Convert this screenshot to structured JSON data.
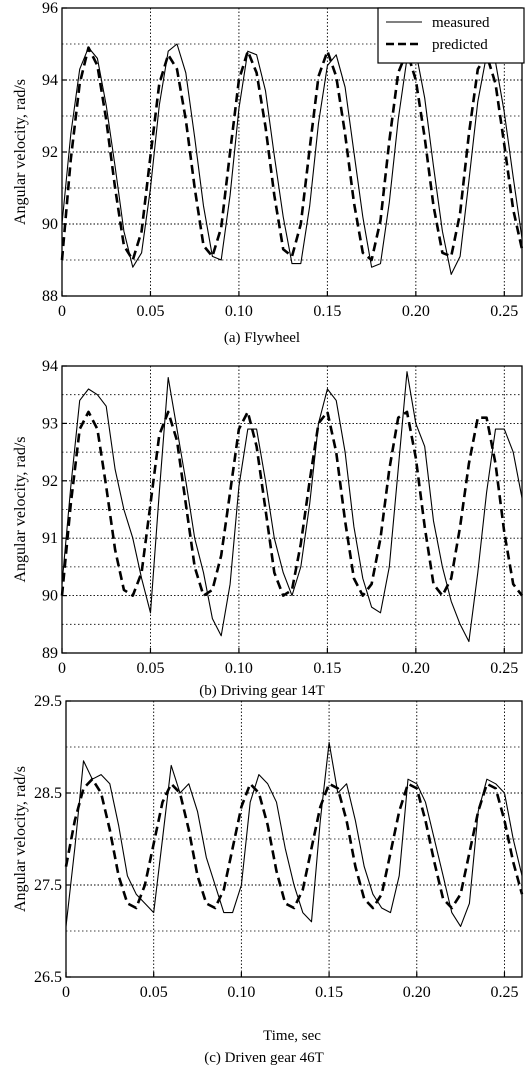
{
  "chart_data": [
    {
      "type": "line",
      "caption": "(a) Flywheel",
      "xlabel": "",
      "ylabel": "Angular velocity, rad/s",
      "xlim": [
        0,
        0.26
      ],
      "ylim": [
        88,
        96
      ],
      "xticks": [
        0,
        0.05,
        0.1,
        0.15,
        0.2,
        0.25
      ],
      "xtick_labels": [
        "0",
        "0.05",
        "0.10",
        "0.15",
        "0.20",
        "0.25"
      ],
      "yticks": [
        88,
        90,
        92,
        94,
        96
      ],
      "ytick_labels": [
        "88",
        "90",
        "92",
        "94",
        "96"
      ],
      "grid": true,
      "legend": {
        "placement": "top-right",
        "entries": [
          "measured",
          "predicted"
        ]
      },
      "series": [
        {
          "name": "measured",
          "style": "solid",
          "x": [
            0.0,
            0.005,
            0.01,
            0.015,
            0.02,
            0.025,
            0.03,
            0.035,
            0.04,
            0.045,
            0.05,
            0.055,
            0.06,
            0.065,
            0.07,
            0.075,
            0.08,
            0.085,
            0.09,
            0.095,
            0.1,
            0.105,
            0.11,
            0.115,
            0.12,
            0.125,
            0.13,
            0.135,
            0.14,
            0.145,
            0.15,
            0.155,
            0.16,
            0.165,
            0.17,
            0.175,
            0.18,
            0.185,
            0.19,
            0.195,
            0.2,
            0.205,
            0.21,
            0.215,
            0.22,
            0.225,
            0.23,
            0.235,
            0.24,
            0.245,
            0.25,
            0.255,
            0.26
          ],
          "y": [
            90.0,
            92.5,
            94.3,
            94.9,
            94.6,
            93.3,
            91.6,
            89.8,
            88.8,
            89.2,
            91.0,
            93.3,
            94.8,
            95.0,
            94.2,
            92.4,
            90.5,
            89.1,
            89.0,
            90.8,
            93.2,
            94.8,
            94.7,
            93.7,
            91.9,
            90.2,
            88.9,
            88.9,
            90.5,
            92.8,
            94.4,
            94.7,
            93.8,
            92.0,
            90.2,
            88.8,
            88.9,
            90.6,
            92.9,
            94.6,
            94.8,
            93.5,
            91.6,
            89.8,
            88.6,
            89.1,
            91.2,
            93.4,
            94.7,
            94.5,
            93.1,
            91.3,
            89.6
          ]
        },
        {
          "name": "predicted",
          "style": "dashed",
          "x": [
            0.0,
            0.005,
            0.01,
            0.015,
            0.02,
            0.025,
            0.03,
            0.035,
            0.04,
            0.045,
            0.05,
            0.055,
            0.06,
            0.065,
            0.07,
            0.075,
            0.08,
            0.085,
            0.09,
            0.095,
            0.1,
            0.105,
            0.11,
            0.115,
            0.12,
            0.125,
            0.13,
            0.135,
            0.14,
            0.145,
            0.15,
            0.155,
            0.16,
            0.165,
            0.17,
            0.175,
            0.18,
            0.185,
            0.19,
            0.195,
            0.2,
            0.205,
            0.21,
            0.215,
            0.22,
            0.225,
            0.23,
            0.235,
            0.24,
            0.245,
            0.25,
            0.255,
            0.26
          ],
          "y": [
            89.0,
            91.8,
            93.9,
            94.9,
            94.4,
            92.9,
            91.0,
            89.4,
            89.0,
            89.8,
            91.9,
            93.9,
            94.7,
            94.3,
            92.9,
            91.0,
            89.4,
            89.1,
            89.9,
            92.0,
            94.0,
            94.8,
            94.2,
            92.7,
            90.8,
            89.3,
            89.1,
            90.0,
            92.1,
            94.1,
            94.8,
            94.1,
            92.5,
            90.6,
            89.2,
            89.0,
            90.1,
            92.3,
            94.2,
            94.8,
            94.0,
            92.4,
            90.5,
            89.2,
            89.1,
            90.3,
            92.5,
            94.3,
            94.7,
            93.9,
            92.2,
            90.4,
            89.3
          ]
        }
      ]
    },
    {
      "type": "line",
      "caption": "(b) Driving gear 14T",
      "xlabel": "",
      "ylabel": "Angular velocity, rad/s",
      "xlim": [
        0,
        0.26
      ],
      "ylim": [
        89,
        94
      ],
      "xticks": [
        0,
        0.05,
        0.1,
        0.15,
        0.2,
        0.25
      ],
      "xtick_labels": [
        "0",
        "0.05",
        "0.10",
        "0.15",
        "0.20",
        "0.25"
      ],
      "yticks": [
        89,
        90,
        91,
        92,
        93,
        94
      ],
      "ytick_labels": [
        "89",
        "90",
        "91",
        "92",
        "93",
        "94"
      ],
      "grid": true,
      "series": [
        {
          "name": "measured",
          "style": "solid",
          "x": [
            0.0,
            0.005,
            0.01,
            0.015,
            0.02,
            0.025,
            0.03,
            0.035,
            0.04,
            0.045,
            0.05,
            0.055,
            0.06,
            0.065,
            0.07,
            0.075,
            0.08,
            0.085,
            0.09,
            0.095,
            0.1,
            0.105,
            0.11,
            0.115,
            0.12,
            0.125,
            0.13,
            0.135,
            0.14,
            0.145,
            0.15,
            0.155,
            0.16,
            0.165,
            0.17,
            0.175,
            0.18,
            0.185,
            0.19,
            0.195,
            0.2,
            0.205,
            0.21,
            0.215,
            0.22,
            0.225,
            0.23,
            0.235,
            0.24,
            0.245,
            0.25,
            0.255,
            0.26
          ],
          "y": [
            90.2,
            91.9,
            93.4,
            93.6,
            93.5,
            93.3,
            92.2,
            91.5,
            91.0,
            90.3,
            89.7,
            91.8,
            93.8,
            92.9,
            92.0,
            91.0,
            90.4,
            89.6,
            89.3,
            90.2,
            91.9,
            92.9,
            92.9,
            92.0,
            91.0,
            90.4,
            90.0,
            90.5,
            91.6,
            93.0,
            93.6,
            93.4,
            92.5,
            91.2,
            90.3,
            89.8,
            89.7,
            90.5,
            92.2,
            93.9,
            93.0,
            92.6,
            91.3,
            90.5,
            89.9,
            89.5,
            89.2,
            90.4,
            91.8,
            92.9,
            92.9,
            92.5,
            91.7
          ]
        },
        {
          "name": "predicted",
          "style": "dashed",
          "x": [
            0.0,
            0.005,
            0.01,
            0.015,
            0.02,
            0.025,
            0.03,
            0.035,
            0.04,
            0.045,
            0.05,
            0.055,
            0.06,
            0.065,
            0.07,
            0.075,
            0.08,
            0.085,
            0.09,
            0.095,
            0.1,
            0.105,
            0.11,
            0.115,
            0.12,
            0.125,
            0.13,
            0.135,
            0.14,
            0.145,
            0.15,
            0.155,
            0.16,
            0.165,
            0.17,
            0.175,
            0.18,
            0.185,
            0.19,
            0.195,
            0.2,
            0.205,
            0.21,
            0.215,
            0.22,
            0.225,
            0.23,
            0.235,
            0.24,
            0.245,
            0.25,
            0.255,
            0.26
          ],
          "y": [
            90.0,
            91.6,
            92.9,
            93.2,
            92.9,
            91.9,
            90.8,
            90.1,
            90.0,
            90.4,
            91.6,
            92.8,
            93.2,
            92.7,
            91.6,
            90.5,
            90.0,
            90.1,
            90.7,
            91.8,
            92.9,
            93.2,
            92.6,
            91.5,
            90.4,
            90.0,
            90.1,
            90.9,
            92.0,
            93.0,
            93.2,
            92.5,
            91.3,
            90.3,
            90.0,
            90.2,
            91.0,
            92.2,
            93.1,
            93.2,
            92.4,
            91.2,
            90.2,
            90.0,
            90.3,
            91.2,
            92.3,
            93.1,
            93.1,
            92.3,
            91.1,
            90.2,
            90.0
          ]
        }
      ]
    },
    {
      "type": "line",
      "caption": "(c) Driven gear 46T",
      "xlabel": "Time, sec",
      "ylabel": "Angular velocity, rad/s",
      "xlim": [
        0,
        0.26
      ],
      "ylim": [
        26.5,
        29.5
      ],
      "xticks": [
        0,
        0.05,
        0.1,
        0.15,
        0.2,
        0.25
      ],
      "xtick_labels": [
        "0",
        "0.05",
        "0.10",
        "0.15",
        "0.20",
        "0.25"
      ],
      "yticks": [
        26.5,
        27.5,
        28.5,
        29.5
      ],
      "ytick_labels": [
        "26.5",
        "27.5",
        "28.5",
        "29.5"
      ],
      "grid": true,
      "series": [
        {
          "name": "measured",
          "style": "solid",
          "x": [
            0.0,
            0.005,
            0.01,
            0.015,
            0.02,
            0.025,
            0.03,
            0.035,
            0.04,
            0.045,
            0.05,
            0.055,
            0.06,
            0.065,
            0.07,
            0.075,
            0.08,
            0.085,
            0.09,
            0.095,
            0.1,
            0.105,
            0.11,
            0.115,
            0.12,
            0.125,
            0.13,
            0.135,
            0.14,
            0.145,
            0.15,
            0.155,
            0.16,
            0.165,
            0.17,
            0.175,
            0.18,
            0.185,
            0.19,
            0.195,
            0.2,
            0.205,
            0.21,
            0.215,
            0.22,
            0.225,
            0.23,
            0.235,
            0.24,
            0.245,
            0.25,
            0.255,
            0.26
          ],
          "y": [
            27.05,
            27.9,
            28.85,
            28.65,
            28.7,
            28.6,
            28.15,
            27.6,
            27.4,
            27.3,
            27.2,
            28.0,
            28.8,
            28.5,
            28.6,
            28.3,
            27.8,
            27.5,
            27.2,
            27.2,
            27.5,
            28.4,
            28.7,
            28.6,
            28.4,
            27.9,
            27.5,
            27.2,
            27.1,
            28.2,
            29.05,
            28.5,
            28.6,
            28.2,
            27.7,
            27.4,
            27.25,
            27.2,
            27.6,
            28.65,
            28.6,
            28.4,
            28.0,
            27.6,
            27.2,
            27.05,
            27.3,
            28.3,
            28.65,
            28.6,
            28.5,
            28.0,
            27.6
          ]
        },
        {
          "name": "predicted",
          "style": "dashed",
          "x": [
            0.0,
            0.005,
            0.01,
            0.015,
            0.02,
            0.025,
            0.03,
            0.035,
            0.04,
            0.045,
            0.05,
            0.055,
            0.06,
            0.065,
            0.07,
            0.075,
            0.08,
            0.085,
            0.09,
            0.095,
            0.1,
            0.105,
            0.11,
            0.115,
            0.12,
            0.125,
            0.13,
            0.135,
            0.14,
            0.145,
            0.15,
            0.155,
            0.16,
            0.165,
            0.17,
            0.175,
            0.18,
            0.185,
            0.19,
            0.195,
            0.2,
            0.205,
            0.21,
            0.215,
            0.22,
            0.225,
            0.23,
            0.235,
            0.24,
            0.245,
            0.25,
            0.255,
            0.26
          ],
          "y": [
            27.7,
            28.2,
            28.55,
            28.65,
            28.5,
            28.1,
            27.6,
            27.3,
            27.25,
            27.5,
            27.95,
            28.4,
            28.6,
            28.5,
            28.1,
            27.6,
            27.3,
            27.25,
            27.45,
            27.9,
            28.35,
            28.6,
            28.5,
            28.15,
            27.65,
            27.3,
            27.25,
            27.45,
            27.9,
            28.35,
            28.6,
            28.55,
            28.2,
            27.7,
            27.35,
            27.25,
            27.4,
            27.85,
            28.3,
            28.6,
            28.55,
            28.2,
            27.75,
            27.35,
            27.25,
            27.4,
            27.85,
            28.3,
            28.6,
            28.55,
            28.2,
            27.75,
            27.4
          ]
        }
      ]
    }
  ]
}
